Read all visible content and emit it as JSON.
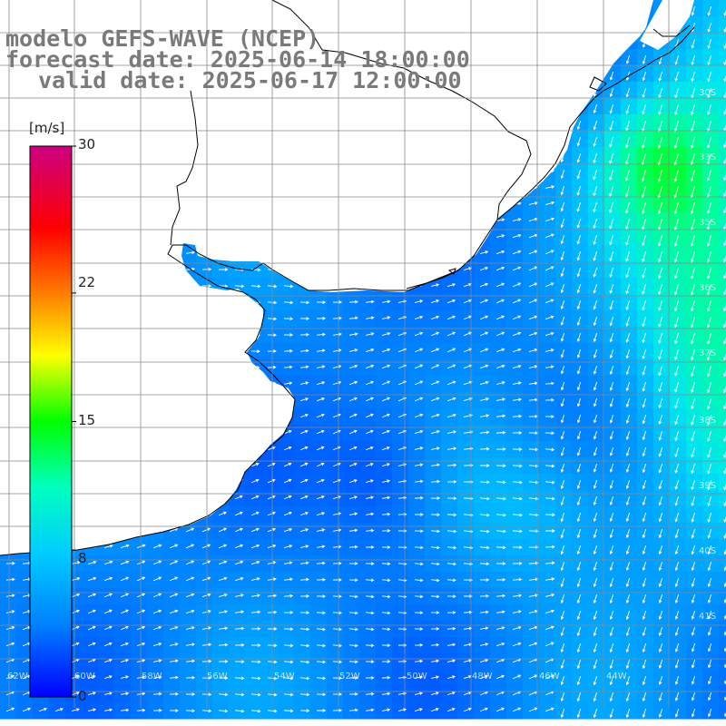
{
  "header": {
    "model": "modelo GEFS-WAVE (NCEP)",
    "forecast": "forecast date: 2025-06-14 18:00:00",
    "valid": "valid date: 2025-06-17 12:00:00"
  },
  "colorbar": {
    "unit": "[m/s]",
    "ticks": [
      "30",
      "22",
      "15",
      "8",
      "0"
    ],
    "tick_values": [
      30,
      22,
      15,
      8,
      0
    ],
    "range": [
      0,
      30
    ],
    "colors": [
      "#0000ff",
      "#0080ff",
      "#00ccff",
      "#00ffcc",
      "#00ff00",
      "#ffff00",
      "#ff8000",
      "#ff0000",
      "#cc0080"
    ]
  },
  "map": {
    "lat_labels": [
      "30S",
      "33S",
      "35S",
      "36S",
      "37S",
      "38S",
      "39S",
      "40S",
      "41S"
    ],
    "lon_labels": [
      "62W",
      "60W",
      "58W",
      "56W",
      "54W",
      "52W",
      "50W",
      "48W",
      "46W",
      "44W"
    ],
    "land_color": "#ffffff",
    "grid_color": "#999999",
    "coast_color": "#000000"
  }
}
